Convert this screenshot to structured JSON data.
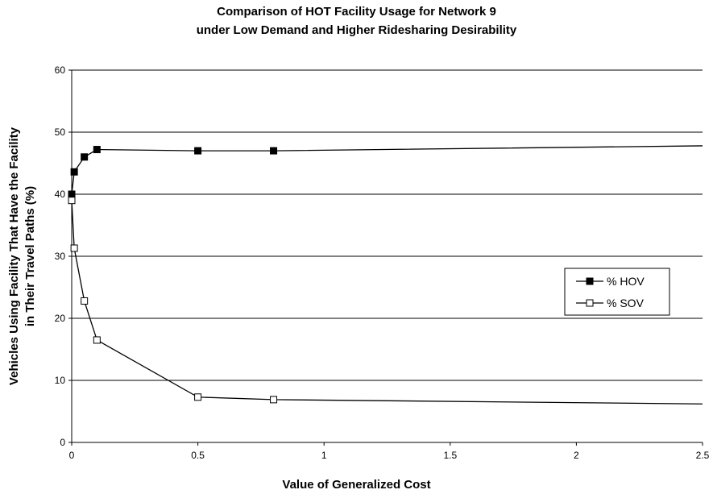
{
  "chart_data": {
    "type": "line",
    "title": "Comparison of HOT Facility Usage for Network 9",
    "subtitle": "under Low Demand and Higher Ridesharing Desirability",
    "xlabel": "Value of Generalized Cost",
    "ylabel_line1": "Vehicles Using Facility That Have the Facility",
    "ylabel_line2": "in Their Travel Paths (%)",
    "xlim": [
      0,
      2.5
    ],
    "ylim": [
      0,
      60
    ],
    "x_ticks": [
      "0",
      "0.5",
      "1",
      "1.5",
      "2",
      "2.5"
    ],
    "x_tick_values": [
      0,
      0.5,
      1,
      1.5,
      2,
      2.5
    ],
    "y_ticks": [
      "0",
      "10",
      "20",
      "30",
      "40",
      "50",
      "60"
    ],
    "y_tick_values": [
      0,
      10,
      20,
      30,
      40,
      50,
      60
    ],
    "grid": "horizontal",
    "legend_position": "right",
    "series": [
      {
        "name": "% HOV",
        "marker": "filled-square",
        "color": "#000000",
        "x": [
          0,
          0.01,
          0.05,
          0.1,
          0.5,
          0.8
        ],
        "y": [
          40.0,
          43.6,
          46.0,
          47.2,
          47.0,
          47.0
        ],
        "end_x": 2.5,
        "end_y": 47.8
      },
      {
        "name": "% SOV",
        "marker": "open-square",
        "color": "#000000",
        "x": [
          0,
          0.01,
          0.05,
          0.1,
          0.5,
          0.8
        ],
        "y": [
          39.0,
          31.3,
          22.8,
          16.5,
          7.3,
          6.9
        ],
        "end_x": 2.5,
        "end_y": 6.2
      }
    ]
  }
}
